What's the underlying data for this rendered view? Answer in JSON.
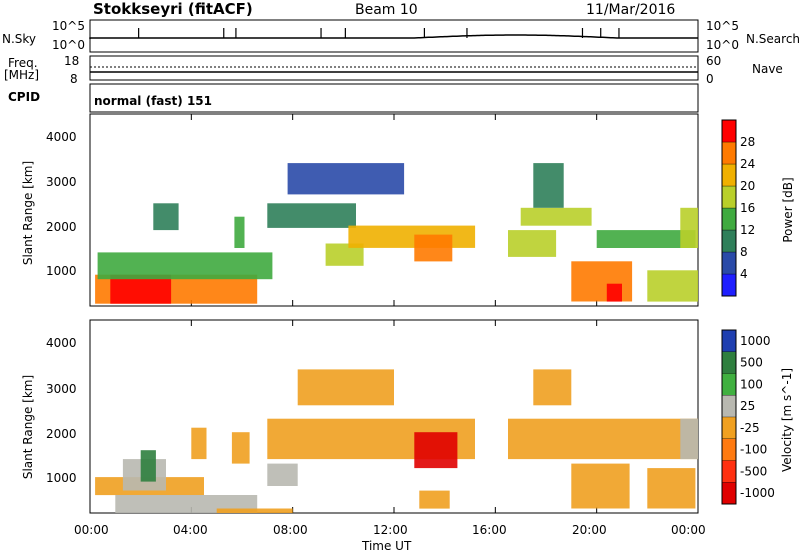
{
  "header": {
    "radar": "Stokkseyri (fitACF)",
    "beam": "Beam 10",
    "date": "11/Mar/2016"
  },
  "noise_panel": {
    "left_label": "N.Sky",
    "right_label": "N.Search",
    "left_ticks": [
      "10^5",
      "10^0"
    ],
    "right_ticks": [
      "10^5",
      "10^0"
    ]
  },
  "freq_panel": {
    "left_label_1": "Freq.",
    "left_label_2": "[MHz]",
    "right_label": "Nave",
    "left_ticks": [
      "18",
      "8"
    ],
    "right_ticks": [
      "60",
      "0"
    ]
  },
  "cpid": {
    "label": "CPID",
    "value": "normal (fast) 151"
  },
  "time_axis": {
    "labels": [
      "00:00",
      "04:00",
      "08:00",
      "12:00",
      "16:00",
      "20:00",
      "00:00"
    ],
    "title": "Time UT"
  },
  "colors": {
    "power_scale": [
      "#1f1fff",
      "#2a4aa8",
      "#2f7f5a",
      "#3faa3f",
      "#b9cf2a",
      "#f0b000",
      "#ff7a00",
      "#ff0000"
    ],
    "velocity_scale": [
      "#1f3fb0",
      "#2f7f3f",
      "#40b040",
      "#b8b8b0",
      "#f0a020",
      "#ff7a10",
      "#ff3010",
      "#e00000"
    ]
  },
  "chart_data": [
    {
      "type": "heatmap",
      "panel": "power",
      "ylabel": "Slant Range [km]",
      "yticks": [
        "1000",
        "2000",
        "3000",
        "4000"
      ],
      "ylim": [
        200,
        4500
      ],
      "xlim_hours": [
        0,
        24
      ],
      "colorbar_title": "Power [dB]",
      "colorbar_ticks": [
        "4",
        "8",
        "12",
        "16",
        "20",
        "24",
        "28"
      ],
      "colorbar_range": [
        0,
        32
      ],
      "regions": [
        {
          "t": [
            0.2,
            6.6
          ],
          "r": [
            250,
            900
          ],
          "v": 27
        },
        {
          "t": [
            0.8,
            3.2
          ],
          "r": [
            250,
            900
          ],
          "v": 29
        },
        {
          "t": [
            0.3,
            7.2
          ],
          "r": [
            800,
            1400
          ],
          "v": 14
        },
        {
          "t": [
            2.5,
            3.5
          ],
          "r": [
            1900,
            2500
          ],
          "v": 10
        },
        {
          "t": [
            5.7,
            6.1
          ],
          "r": [
            1500,
            2200
          ],
          "v": 12
        },
        {
          "t": [
            7.0,
            10.5
          ],
          "r": [
            1950,
            2500
          ],
          "v": 11
        },
        {
          "t": [
            9.3,
            10.8
          ],
          "r": [
            1100,
            1600
          ],
          "v": 19
        },
        {
          "t": [
            10.2,
            15.2
          ],
          "r": [
            1500,
            2000
          ],
          "v": 21
        },
        {
          "t": [
            12.8,
            14.3
          ],
          "r": [
            1200,
            1800
          ],
          "v": 26
        },
        {
          "t": [
            7.8,
            12.4
          ],
          "r": [
            2700,
            3400
          ],
          "v": 7
        },
        {
          "t": [
            16.5,
            18.4
          ],
          "r": [
            1300,
            1900
          ],
          "v": 19
        },
        {
          "t": [
            17.0,
            19.8
          ],
          "r": [
            2000,
            2400
          ],
          "v": 17
        },
        {
          "t": [
            17.5,
            18.7
          ],
          "r": [
            2400,
            3400
          ],
          "v": 9
        },
        {
          "t": [
            19.0,
            21.4
          ],
          "r": [
            300,
            1200
          ],
          "v": 24
        },
        {
          "t": [
            20.4,
            21.0
          ],
          "r": [
            300,
            700
          ],
          "v": 28
        },
        {
          "t": [
            20.0,
            23.9
          ],
          "r": [
            1500,
            1900
          ],
          "v": 12
        },
        {
          "t": [
            22.0,
            24.0
          ],
          "r": [
            300,
            1000
          ],
          "v": 16
        },
        {
          "t": [
            23.3,
            24.0
          ],
          "r": [
            1500,
            2400
          ],
          "v": 18
        }
      ]
    },
    {
      "type": "heatmap",
      "panel": "velocity",
      "ylabel": "Slant Range [km]",
      "yticks": [
        "1000",
        "2000",
        "3000",
        "4000"
      ],
      "ylim": [
        200,
        4500
      ],
      "xlim_hours": [
        0,
        24
      ],
      "colorbar_title": "Velocity [m s^-1]",
      "colorbar_ticks": [
        "1000",
        "500",
        "100",
        "25",
        "-25",
        "-100",
        "-500",
        "-1000"
      ],
      "colorbar_range": [
        -1000,
        1000
      ],
      "regions": [
        {
          "t": [
            0.2,
            4.5
          ],
          "r": [
            600,
            1000
          ],
          "v": 0
        },
        {
          "t": [
            1.0,
            6.6
          ],
          "r": [
            200,
            600
          ],
          "v": 150
        },
        {
          "t": [
            1.3,
            3.0
          ],
          "r": [
            700,
            1400
          ],
          "v": 120
        },
        {
          "t": [
            2.0,
            2.6
          ],
          "r": [
            900,
            1600
          ],
          "v": 600
        },
        {
          "t": [
            4.0,
            4.6
          ],
          "r": [
            1400,
            2100
          ],
          "v": -150
        },
        {
          "t": [
            5.6,
            6.3
          ],
          "r": [
            1300,
            2000
          ],
          "v": -150
        },
        {
          "t": [
            5.0,
            8.0
          ],
          "r": [
            200,
            300
          ],
          "v": -200
        },
        {
          "t": [
            7.0,
            8.2
          ],
          "r": [
            800,
            1300
          ],
          "v": 120
        },
        {
          "t": [
            7.0,
            15.2
          ],
          "r": [
            1400,
            2300
          ],
          "v": 0
        },
        {
          "t": [
            8.2,
            12.0
          ],
          "r": [
            2600,
            3400
          ],
          "v": 0
        },
        {
          "t": [
            12.8,
            14.5
          ],
          "r": [
            1200,
            2000
          ],
          "v": -1000
        },
        {
          "t": [
            13.0,
            14.2
          ],
          "r": [
            300,
            700
          ],
          "v": -150
        },
        {
          "t": [
            16.5,
            24.0
          ],
          "r": [
            1400,
            2300
          ],
          "v": 0
        },
        {
          "t": [
            17.5,
            19.0
          ],
          "r": [
            2600,
            3400
          ],
          "v": -100
        },
        {
          "t": [
            19.0,
            21.3
          ],
          "r": [
            300,
            1300
          ],
          "v": -200
        },
        {
          "t": [
            22.0,
            23.9
          ],
          "r": [
            300,
            1200
          ],
          "v": -150
        },
        {
          "t": [
            23.3,
            24.0
          ],
          "r": [
            1400,
            2300
          ],
          "v": 200
        }
      ]
    }
  ]
}
